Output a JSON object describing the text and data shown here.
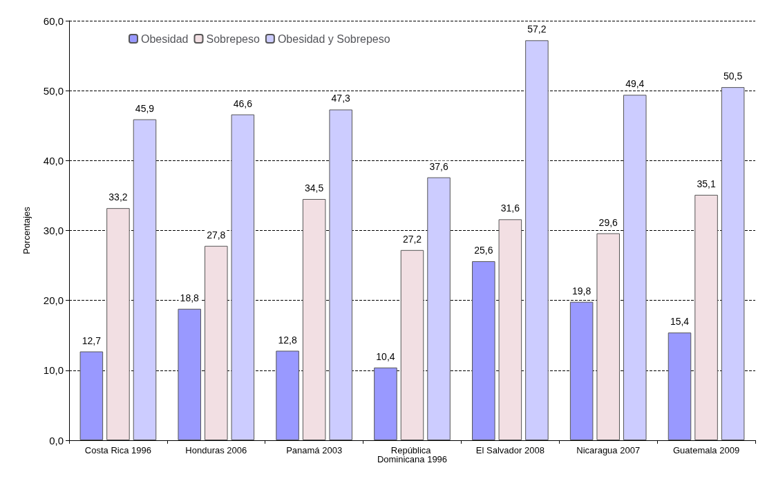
{
  "chart_data": {
    "type": "bar",
    "ylabel": "Porcentajes",
    "categories": [
      "Costa Rica 1996",
      "Honduras 2006",
      "Panamá 2003",
      "República Dominicana 1996",
      "El Salvador 2008",
      "Nicaragua 2007",
      "Guatemala 2009"
    ],
    "series": [
      {
        "name": "Obesidad",
        "color": "#9999ff",
        "values": [
          12.7,
          18.8,
          12.8,
          10.4,
          25.6,
          19.8,
          15.4
        ],
        "value_labels": [
          "12,7",
          "18,8",
          "12,8",
          "10,4",
          "25,6",
          "19,8",
          "15,4"
        ]
      },
      {
        "name": "Sobrepeso",
        "color": "#f2dfe3",
        "values": [
          33.2,
          27.8,
          34.5,
          27.2,
          31.6,
          29.6,
          35.1
        ],
        "value_labels": [
          "33,2",
          "27,8",
          "34,5",
          "27,2",
          "31,6",
          "29,6",
          "35,1"
        ]
      },
      {
        "name": "Obesidad y Sobrepeso",
        "color": "#ccccff",
        "values": [
          45.9,
          46.6,
          47.3,
          37.6,
          57.2,
          49.4,
          50.5
        ],
        "value_labels": [
          "45,9",
          "46,6",
          "47,3",
          "37,6",
          "57,2",
          "49,4",
          "50,5"
        ]
      }
    ],
    "ylim": [
      0,
      60
    ],
    "yticks": [
      {
        "value": 0,
        "label": "0,0"
      },
      {
        "value": 10,
        "label": "10,0"
      },
      {
        "value": 20,
        "label": "20,0"
      },
      {
        "value": 30,
        "label": "30,0"
      },
      {
        "value": 40,
        "label": "40,0"
      },
      {
        "value": 50,
        "label": "50,0"
      },
      {
        "value": 60,
        "label": "60,0"
      }
    ],
    "grid": "y",
    "legend": "top left"
  }
}
